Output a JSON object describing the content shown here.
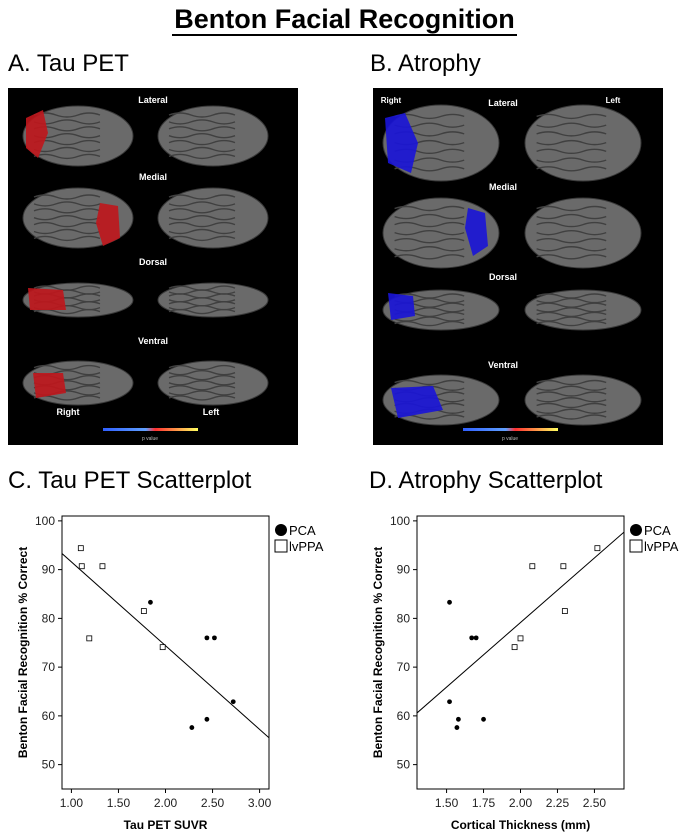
{
  "figure": {
    "title": "Benton Facial Recognition",
    "panelA": {
      "label": "A. Tau PET",
      "views": [
        "Lateral",
        "Medial",
        "Dorsal",
        "Ventral"
      ],
      "hemi_left": "Right",
      "hemi_right": "Left",
      "colorbar_label": "p value",
      "highlight_color": "#c0161c"
    },
    "panelB": {
      "label": "B. Atrophy",
      "views": [
        "Lateral",
        "Medial",
        "Dorsal",
        "Ventral"
      ],
      "hemi_left": "Right",
      "hemi_right": "Left",
      "colorbar_label": "p value",
      "highlight_color": "#1a14d8"
    },
    "panelC": {
      "label": "C. Tau PET Scatterplot"
    },
    "panelD": {
      "label": "D. Atrophy Scatterplot"
    }
  },
  "chart_data": [
    {
      "type": "scatter",
      "xlabel": "Tau PET SUVR",
      "ylabel": "Benton Facial Recognition % Correct",
      "xlim": [
        0.9,
        3.1
      ],
      "ylim": [
        45,
        101
      ],
      "xticks": [
        "1.00",
        "1.50",
        "2.00",
        "2.50",
        "3.00"
      ],
      "yticks": [
        "50",
        "60",
        "70",
        "80",
        "90",
        "100"
      ],
      "legend": [
        "PCA",
        "lvPPA"
      ],
      "series": [
        {
          "name": "PCA",
          "marker": "filled-circle",
          "points": [
            [
              1.84,
              83.3
            ],
            [
              2.44,
              76
            ],
            [
              2.52,
              76
            ],
            [
              2.72,
              62.9
            ],
            [
              2.44,
              59.3
            ],
            [
              2.28,
              57.6
            ]
          ]
        },
        {
          "name": "lvPPA",
          "marker": "open-square",
          "points": [
            [
              1.1,
              94.4
            ],
            [
              1.11,
              90.7
            ],
            [
              1.33,
              90.7
            ],
            [
              1.77,
              81.5
            ],
            [
              1.19,
              75.9
            ],
            [
              1.97,
              74.1
            ]
          ]
        }
      ],
      "fit_line": [
        [
          0.9,
          93.3
        ],
        [
          3.1,
          55.5
        ]
      ]
    },
    {
      "type": "scatter",
      "xlabel": "Cortical Thickness (mm)",
      "ylabel": "Benton Facial Recognition % Correct",
      "xlim": [
        1.3,
        2.7
      ],
      "ylim": [
        45,
        101
      ],
      "xticks": [
        "1.50",
        "1.75",
        "2.00",
        "2.25",
        "2.50"
      ],
      "yticks": [
        "50",
        "60",
        "70",
        "80",
        "90",
        "100"
      ],
      "legend": [
        "PCA",
        "lvPPA"
      ],
      "series": [
        {
          "name": "PCA",
          "marker": "filled-circle",
          "points": [
            [
              1.52,
              83.3
            ],
            [
              1.67,
              76
            ],
            [
              1.7,
              76
            ],
            [
              1.52,
              62.9
            ],
            [
              1.58,
              59.3
            ],
            [
              1.75,
              59.3
            ],
            [
              1.57,
              57.6
            ]
          ]
        },
        {
          "name": "lvPPA",
          "marker": "open-square",
          "points": [
            [
              2.08,
              90.7
            ],
            [
              2.29,
              90.7
            ],
            [
              2.52,
              94.4
            ],
            [
              2.3,
              81.5
            ],
            [
              2.0,
              75.9
            ],
            [
              1.96,
              74.1
            ]
          ]
        }
      ],
      "fit_line": [
        [
          1.3,
          60.6
        ],
        [
          2.7,
          97.7
        ]
      ]
    }
  ]
}
